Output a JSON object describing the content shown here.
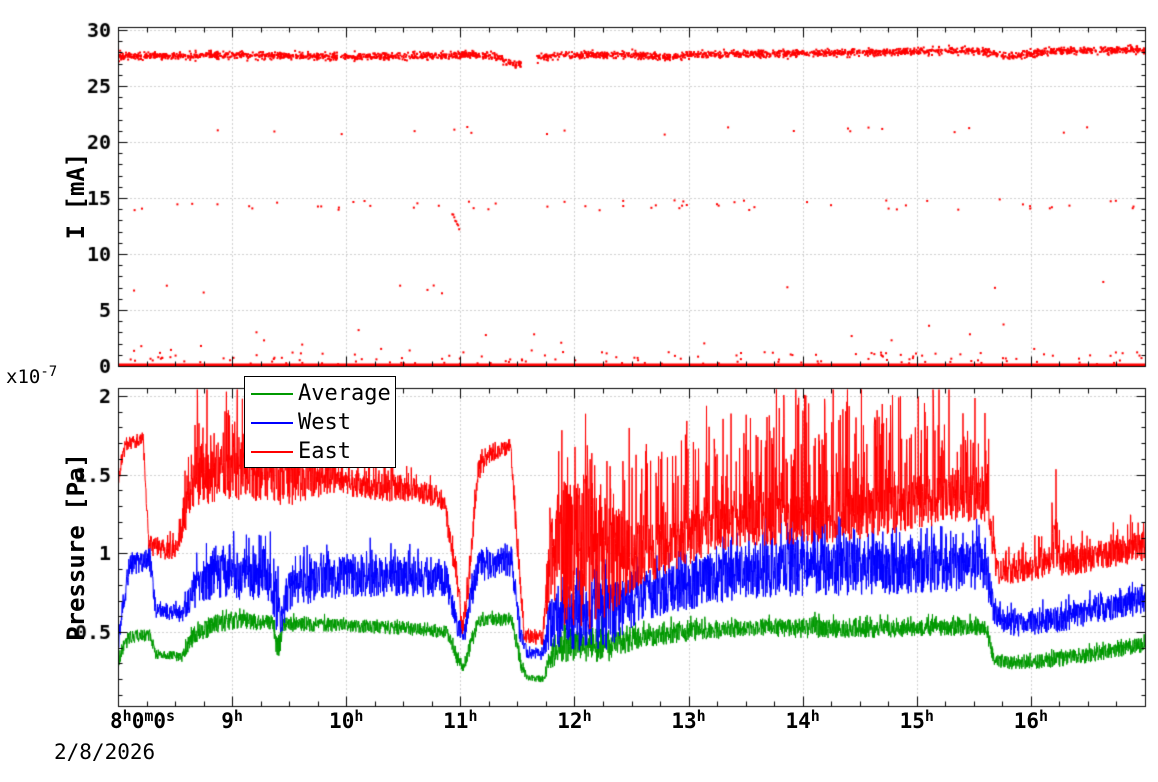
{
  "page": {
    "background": "#ffffff",
    "date_label": "2/8/2026",
    "grid_color": "#9e9e9e",
    "frame_color": "#000000"
  },
  "x_axis": {
    "range_hours": [
      8,
      17
    ],
    "minor_step": 0.25,
    "ticks": [
      {
        "h": 8,
        "parts": [
          [
            "8",
            "h"
          ],
          [
            "0",
            "m"
          ],
          [
            "0",
            "s"
          ]
        ]
      },
      {
        "h": 9,
        "parts": [
          [
            "9",
            "h"
          ]
        ]
      },
      {
        "h": 10,
        "parts": [
          [
            "10",
            "h"
          ]
        ]
      },
      {
        "h": 11,
        "parts": [
          [
            "11",
            "h"
          ]
        ]
      },
      {
        "h": 12,
        "parts": [
          [
            "12",
            "h"
          ]
        ]
      },
      {
        "h": 13,
        "parts": [
          [
            "13",
            "h"
          ]
        ]
      },
      {
        "h": 14,
        "parts": [
          [
            "14",
            "h"
          ]
        ]
      },
      {
        "h": 15,
        "parts": [
          [
            "15",
            "h"
          ]
        ]
      },
      {
        "h": 16,
        "parts": [
          [
            "16",
            "h"
          ]
        ]
      }
    ]
  },
  "chart_data": [
    {
      "type": "scatter",
      "title": "",
      "ylabel": "I [mA]",
      "ylim": [
        0,
        30.26
      ],
      "yticks": [
        {
          "v": 0,
          "label": "0"
        },
        {
          "v": 5,
          "label": "5"
        },
        {
          "v": 10,
          "label": "10"
        },
        {
          "v": 15,
          "label": "15"
        },
        {
          "v": 20,
          "label": "20"
        },
        {
          "v": 25,
          "label": "25"
        },
        {
          "v": 30,
          "label": "30"
        }
      ],
      "y_minor_step": 1,
      "grid": true,
      "marker_color": "#ff0000",
      "marker_size": 2,
      "baseline_line": {
        "value": 0.1,
        "line_width": 3
      },
      "main_band": {
        "sigma": 0.16,
        "count": 2600,
        "gaps": [
          [
            11.53,
            11.67
          ]
        ],
        "keyframes": [
          [
            8.0,
            27.65
          ],
          [
            9.0,
            27.75
          ],
          [
            9.5,
            27.7
          ],
          [
            10.0,
            27.6
          ],
          [
            10.5,
            27.65
          ],
          [
            10.9,
            27.7
          ],
          [
            11.1,
            27.8
          ],
          [
            11.3,
            27.65
          ],
          [
            11.4,
            27.2
          ],
          [
            11.5,
            26.9
          ],
          [
            11.66,
            27.4
          ],
          [
            11.8,
            27.7
          ],
          [
            12.0,
            27.75
          ],
          [
            12.5,
            27.8
          ],
          [
            12.85,
            27.5
          ],
          [
            13.0,
            27.8
          ],
          [
            13.5,
            27.85
          ],
          [
            14.0,
            27.9
          ],
          [
            14.5,
            28.0
          ],
          [
            15.0,
            28.1
          ],
          [
            15.5,
            28.2
          ],
          [
            15.65,
            28.0
          ],
          [
            15.78,
            27.6
          ],
          [
            15.95,
            27.85
          ],
          [
            16.2,
            28.1
          ],
          [
            16.6,
            28.2
          ],
          [
            17.0,
            28.25
          ]
        ]
      },
      "sparse_bands": [
        {
          "y": 21.0,
          "spread": 0.35,
          "count": 20
        },
        {
          "y": 14.4,
          "spread": 0.5,
          "count": 60
        },
        {
          "y": 7.0,
          "spread": 0.6,
          "count": 10
        },
        {
          "y": 2.4,
          "spread": 1.5,
          "count": 26
        },
        {
          "y": 0.7,
          "spread": 0.55,
          "count": 130
        }
      ],
      "ramp_cluster": {
        "h0": 10.93,
        "y0": 13.6,
        "h1": 10.99,
        "y1": 12.3,
        "count": 8
      }
    },
    {
      "type": "line",
      "title": "",
      "ylabel": "Pressure [Pa]",
      "scale_label": {
        "base": "x10",
        "exp": "-7"
      },
      "ylim": [
        0.03,
        2.05
      ],
      "yticks": [
        {
          "v": 0.5,
          "label": "0.5"
        },
        {
          "v": 1,
          "label": "1"
        },
        {
          "v": 1.5,
          "label": "1.5"
        },
        {
          "v": 2,
          "label": "2"
        }
      ],
      "y_minor_step": 0.1,
      "grid": true,
      "legend": {
        "position": "top-left",
        "entries": [
          {
            "label": "Average",
            "color": "#009900"
          },
          {
            "label": "West",
            "color": "#0000ff"
          },
          {
            "label": "East",
            "color": "#ff0000"
          }
        ]
      },
      "samples_per_series": 3600,
      "series": [
        {
          "name": "Average",
          "color": "#009900",
          "keyframes": [
            [
              8.0,
              0.3,
              0.05,
              0.02
            ],
            [
              8.06,
              0.43,
              0.05,
              0.02
            ],
            [
              8.11,
              0.47,
              0.04,
              0.02
            ],
            [
              8.28,
              0.48,
              0.04,
              0.02
            ],
            [
              8.33,
              0.36,
              0.03,
              0.01
            ],
            [
              8.56,
              0.34,
              0.03,
              0.02
            ],
            [
              8.65,
              0.46,
              0.06,
              0.05
            ],
            [
              8.85,
              0.55,
              0.06,
              0.06
            ],
            [
              9.05,
              0.57,
              0.05,
              0.05
            ],
            [
              9.36,
              0.55,
              0.05,
              0.04
            ],
            [
              9.4,
              0.38,
              0.1,
              0.02
            ],
            [
              9.45,
              0.55,
              0.05,
              0.03
            ],
            [
              10.0,
              0.54,
              0.04,
              0.04
            ],
            [
              10.5,
              0.52,
              0.04,
              0.03
            ],
            [
              10.88,
              0.5,
              0.04,
              0.03
            ],
            [
              10.97,
              0.34,
              0.05,
              0.02
            ],
            [
              11.03,
              0.27,
              0.03,
              0.01
            ],
            [
              11.09,
              0.42,
              0.06,
              0.03
            ],
            [
              11.16,
              0.57,
              0.04,
              0.03
            ],
            [
              11.45,
              0.58,
              0.04,
              0.02
            ],
            [
              11.52,
              0.32,
              0.06,
              0.02
            ],
            [
              11.58,
              0.21,
              0.02,
              0.01
            ],
            [
              11.72,
              0.2,
              0.02,
              0.01
            ],
            [
              11.8,
              0.35,
              0.09,
              0.06
            ],
            [
              11.92,
              0.42,
              0.11,
              0.08
            ],
            [
              12.3,
              0.42,
              0.11,
              0.08
            ],
            [
              12.55,
              0.46,
              0.07,
              0.05
            ],
            [
              13.0,
              0.5,
              0.06,
              0.05
            ],
            [
              13.5,
              0.52,
              0.05,
              0.05
            ],
            [
              14.0,
              0.52,
              0.06,
              0.05
            ],
            [
              14.5,
              0.52,
              0.06,
              0.05
            ],
            [
              15.0,
              0.52,
              0.05,
              0.05
            ],
            [
              15.6,
              0.53,
              0.05,
              0.05
            ],
            [
              15.68,
              0.32,
              0.04,
              0.02
            ],
            [
              15.85,
              0.3,
              0.04,
              0.02
            ],
            [
              16.2,
              0.32,
              0.05,
              0.03
            ],
            [
              16.55,
              0.36,
              0.05,
              0.04
            ],
            [
              16.99,
              0.42,
              0.05,
              0.05
            ]
          ]
        },
        {
          "name": "West",
          "color": "#0000ff",
          "keyframes": [
            [
              8.0,
              0.42,
              0.06,
              0.02
            ],
            [
              8.06,
              0.75,
              0.08,
              0.02
            ],
            [
              8.11,
              0.93,
              0.07,
              0.05
            ],
            [
              8.28,
              0.95,
              0.07,
              0.04
            ],
            [
              8.33,
              0.64,
              0.05,
              0.02
            ],
            [
              8.56,
              0.61,
              0.05,
              0.04
            ],
            [
              8.65,
              0.76,
              0.12,
              0.15
            ],
            [
              8.85,
              0.85,
              0.15,
              0.2
            ],
            [
              9.3,
              0.85,
              0.15,
              0.24
            ],
            [
              9.38,
              0.7,
              0.2,
              0.28
            ],
            [
              9.43,
              0.56,
              0.1,
              0.1
            ],
            [
              9.52,
              0.8,
              0.14,
              0.15
            ],
            [
              10.0,
              0.85,
              0.13,
              0.15
            ],
            [
              10.5,
              0.85,
              0.13,
              0.12
            ],
            [
              10.88,
              0.82,
              0.1,
              0.1
            ],
            [
              10.97,
              0.55,
              0.08,
              0.04
            ],
            [
              11.03,
              0.46,
              0.05,
              0.03
            ],
            [
              11.09,
              0.7,
              0.1,
              0.08
            ],
            [
              11.16,
              0.92,
              0.1,
              0.08
            ],
            [
              11.45,
              0.95,
              0.1,
              0.07
            ],
            [
              11.52,
              0.52,
              0.08,
              0.04
            ],
            [
              11.58,
              0.37,
              0.04,
              0.02
            ],
            [
              11.72,
              0.36,
              0.04,
              0.02
            ],
            [
              11.8,
              0.55,
              0.16,
              0.18
            ],
            [
              11.92,
              0.6,
              0.22,
              0.2
            ],
            [
              12.3,
              0.6,
              0.22,
              0.2
            ],
            [
              12.55,
              0.72,
              0.16,
              0.15
            ],
            [
              13.0,
              0.8,
              0.16,
              0.18
            ],
            [
              13.5,
              0.87,
              0.16,
              0.2
            ],
            [
              14.0,
              0.9,
              0.17,
              0.24
            ],
            [
              14.5,
              0.9,
              0.17,
              0.2
            ],
            [
              15.0,
              0.9,
              0.16,
              0.2
            ],
            [
              15.6,
              0.92,
              0.15,
              0.18
            ],
            [
              15.68,
              0.6,
              0.08,
              0.05
            ],
            [
              15.85,
              0.55,
              0.08,
              0.06
            ],
            [
              16.2,
              0.57,
              0.08,
              0.08
            ],
            [
              16.55,
              0.63,
              0.08,
              0.08
            ],
            [
              16.99,
              0.7,
              0.09,
              0.1
            ]
          ]
        },
        {
          "name": "East",
          "color": "#ff0000",
          "keyframes": [
            [
              8.0,
              1.48,
              0.06,
              0.05
            ],
            [
              8.05,
              1.65,
              0.05,
              0.02
            ],
            [
              8.1,
              1.7,
              0.04,
              0.02
            ],
            [
              8.22,
              1.72,
              0.04,
              0.02
            ],
            [
              8.27,
              1.05,
              0.06,
              0.02
            ],
            [
              8.5,
              1.0,
              0.06,
              0.1
            ],
            [
              8.58,
              1.22,
              0.1,
              0.3
            ],
            [
              8.7,
              1.45,
              0.16,
              0.55
            ],
            [
              9.0,
              1.52,
              0.18,
              0.52
            ],
            [
              9.4,
              1.48,
              0.18,
              0.5
            ],
            [
              9.6,
              1.45,
              0.14,
              0.45
            ],
            [
              9.85,
              1.48,
              0.1,
              0.3
            ],
            [
              10.05,
              1.42,
              0.07,
              0.12
            ],
            [
              10.35,
              1.4,
              0.07,
              0.2
            ],
            [
              10.65,
              1.38,
              0.06,
              0.12
            ],
            [
              10.85,
              1.34,
              0.07,
              0.06
            ],
            [
              10.95,
              0.95,
              0.1,
              0.04
            ],
            [
              11.02,
              0.52,
              0.05,
              0.02
            ],
            [
              11.08,
              0.85,
              0.1,
              0.08
            ],
            [
              11.15,
              1.52,
              0.08,
              0.05
            ],
            [
              11.25,
              1.62,
              0.05,
              0.04
            ],
            [
              11.44,
              1.68,
              0.05,
              0.02
            ],
            [
              11.5,
              1.05,
              0.1,
              0.02
            ],
            [
              11.56,
              0.48,
              0.05,
              0.02
            ],
            [
              11.72,
              0.46,
              0.05,
              0.02
            ],
            [
              11.79,
              0.95,
              0.25,
              0.5
            ],
            [
              11.88,
              1.0,
              0.45,
              0.55
            ],
            [
              12.1,
              1.0,
              0.5,
              0.5
            ],
            [
              12.35,
              0.95,
              0.32,
              0.58
            ],
            [
              12.6,
              1.0,
              0.2,
              0.6
            ],
            [
              12.9,
              1.05,
              0.16,
              0.68
            ],
            [
              13.2,
              1.15,
              0.15,
              0.75
            ],
            [
              13.6,
              1.2,
              0.15,
              0.75
            ],
            [
              14.0,
              1.2,
              0.16,
              0.8
            ],
            [
              14.5,
              1.25,
              0.16,
              0.78
            ],
            [
              15.0,
              1.3,
              0.15,
              0.75
            ],
            [
              15.3,
              1.35,
              0.15,
              0.7
            ],
            [
              15.62,
              1.35,
              0.15,
              0.6
            ],
            [
              15.7,
              0.88,
              0.08,
              0.1
            ],
            [
              16.0,
              0.9,
              0.08,
              0.15
            ],
            [
              16.17,
              0.93,
              0.08,
              0.2
            ],
            [
              16.21,
              1.15,
              0.28,
              0.55
            ],
            [
              16.25,
              0.93,
              0.08,
              0.2
            ],
            [
              16.45,
              0.95,
              0.08,
              0.15
            ],
            [
              16.75,
              1.0,
              0.09,
              0.15
            ],
            [
              16.99,
              1.05,
              0.1,
              0.3
            ]
          ]
        }
      ]
    }
  ]
}
